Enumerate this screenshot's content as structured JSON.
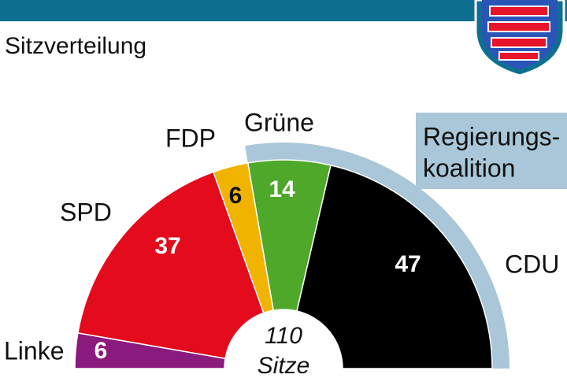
{
  "header": {
    "accent_color": "#0f6f91"
  },
  "subtitle": "Sitzverteilung",
  "emblem": {
    "icon": "hessen-lion-crest-icon"
  },
  "chart_data": {
    "type": "pie",
    "variant": "half-donut parliament seat distribution",
    "title": "",
    "subtitle": "Sitzverteilung",
    "total": 110,
    "center_label": {
      "number": "110",
      "unit": "Sitze"
    },
    "slices": [
      {
        "party": "Linke",
        "seats": 6,
        "color": "#8b1a7f"
      },
      {
        "party": "SPD",
        "seats": 37,
        "color": "#e30b1c"
      },
      {
        "party": "FDP",
        "seats": 6,
        "color": "#f0b400"
      },
      {
        "party": "Grüne",
        "seats": 14,
        "color": "#4ea82a"
      },
      {
        "party": "CDU",
        "seats": 47,
        "color": "#000000"
      }
    ],
    "coalition": {
      "label_line1": "Regierungs-",
      "label_line2": "koalition",
      "parties": [
        "Grüne",
        "CDU"
      ],
      "color": "#a9c7d8"
    }
  }
}
